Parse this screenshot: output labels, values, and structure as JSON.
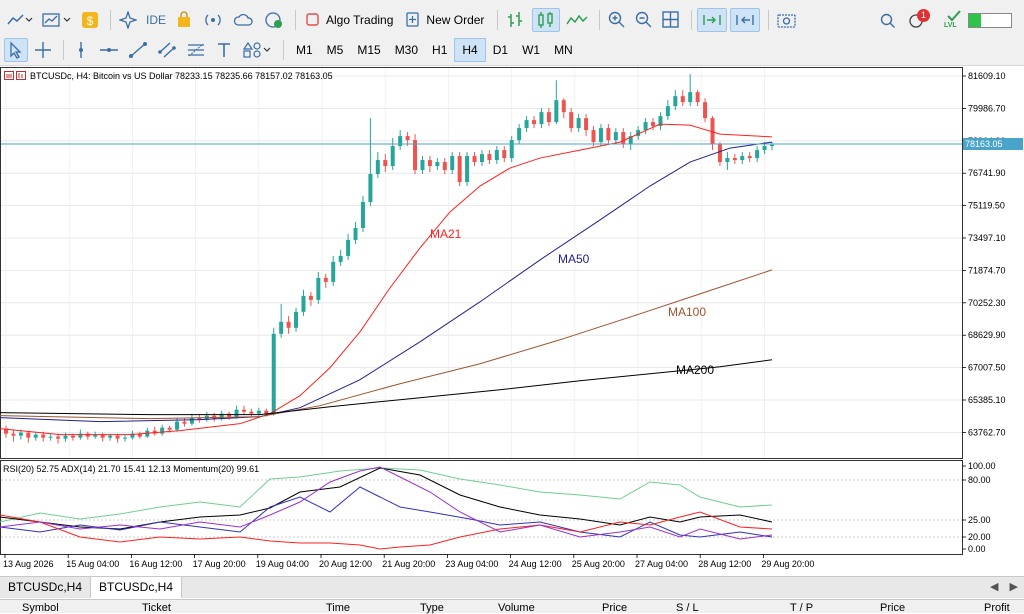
{
  "toolbar": {
    "ide_label": "IDE",
    "algo_label": "Algo Trading",
    "new_order_label": "New Order",
    "timeframes": [
      "M1",
      "M5",
      "M15",
      "M30",
      "H1",
      "H4",
      "D1",
      "W1",
      "MN"
    ],
    "active_timeframe": "H4",
    "notification_count": "1",
    "lvl_label": "LVL"
  },
  "chart": {
    "header": "BTCUSDc, H4:  Bitcoin vs US Dollar  78233.15 78235.66 78157.02 78163.05",
    "current_price": "78163.05",
    "price_labels": [
      "81609.10",
      "79986.70",
      "78364.30",
      "76741.90",
      "75119.50",
      "73497.10",
      "71874.70",
      "70252.30",
      "68629.90",
      "67007.50",
      "65385.10",
      "63762.70"
    ],
    "ma_labels": [
      "MA21",
      "MA50",
      "MA100",
      "MA200"
    ],
    "indicator_header": "RSI(20) 52.75 ADX(14) 21.70 15.41 12.13 Momentum(20) 99.61",
    "indicator_labels": [
      "100.00",
      "80.00",
      "25.00",
      "20.00",
      "0.00"
    ],
    "time_labels": [
      "13 Aug 2026",
      "15 Aug 04:00",
      "16 Aug 12:00",
      "17 Aug 20:00",
      "19 Aug 04:00",
      "20 Aug 12:00",
      "21 Aug 20:00",
      "23 Aug 04:00",
      "24 Aug 12:00",
      "25 Aug 20:00",
      "27 Aug 04:00",
      "28 Aug 12:00",
      "29 Aug 20:00"
    ],
    "colors": {
      "ma21": "#ff2020",
      "ma50": "#20208c",
      "ma100": "#a0522d",
      "ma200": "#000000",
      "bull": "#26a69a",
      "bear": "#ef5350",
      "rsi": "#6fcf8f",
      "adx": "#000000",
      "dip": "#3030c0",
      "dim": "#ff2020",
      "mom": "#9a30d0"
    }
  },
  "tabs": [
    "BTCUSDc,H4",
    "BTCUSDc,H4"
  ],
  "active_tab": 1,
  "bottom_columns": [
    "Symbol",
    "Ticket",
    "Time",
    "Type",
    "Volume",
    "Price",
    "S / L",
    "T / P",
    "Price",
    "Profit"
  ]
}
